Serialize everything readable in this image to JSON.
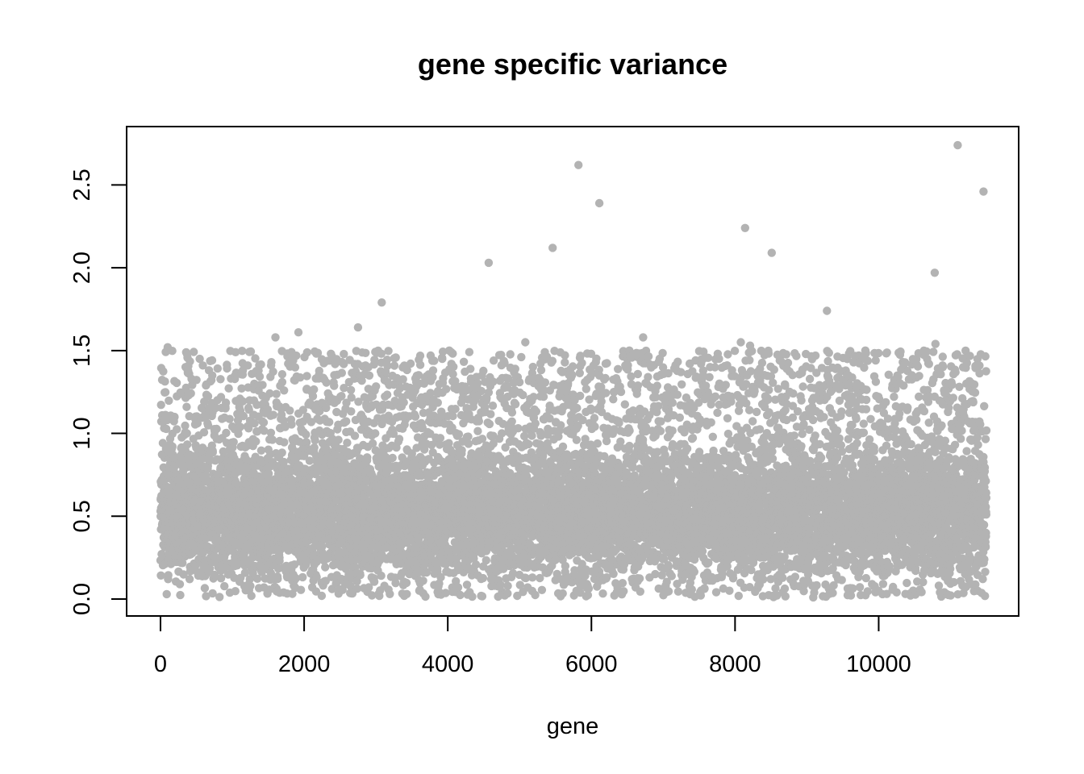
{
  "chart_data": {
    "type": "scatter",
    "title": "gene specific variance",
    "xlabel": "gene",
    "ylabel": "",
    "xlim": [
      0,
      11500
    ],
    "ylim": [
      0,
      2.75
    ],
    "x_ticks": [
      0,
      2000,
      4000,
      6000,
      8000,
      10000
    ],
    "x_tick_labels": [
      "0",
      "2000",
      "4000",
      "6000",
      "8000",
      "10000"
    ],
    "y_ticks": [
      0,
      0.5,
      1,
      1.5,
      2,
      2.5
    ],
    "y_tick_labels": [
      "0.0",
      "0.5",
      "1.0",
      "1.5",
      "2.0",
      "2.5"
    ],
    "grid": false,
    "legend": "none",
    "point_color": "#b3b3b3",
    "n_points": 11500,
    "bulk_distribution": {
      "description": "dense band of points, values roughly between 0.0 and 1.5, concentrated near 0.3-0.6",
      "min": 0.01,
      "max": 1.5
    },
    "points": [
      {
        "x": 100,
        "y": 1.52
      },
      {
        "x": 1600,
        "y": 1.58
      },
      {
        "x": 1920,
        "y": 1.61
      },
      {
        "x": 2750,
        "y": 1.64
      },
      {
        "x": 3080,
        "y": 1.79
      },
      {
        "x": 4020,
        "y": 1.5
      },
      {
        "x": 4570,
        "y": 2.03
      },
      {
        "x": 5080,
        "y": 1.55
      },
      {
        "x": 5460,
        "y": 2.12
      },
      {
        "x": 5820,
        "y": 2.62
      },
      {
        "x": 6110,
        "y": 2.39
      },
      {
        "x": 6720,
        "y": 1.58
      },
      {
        "x": 8080,
        "y": 1.55
      },
      {
        "x": 8140,
        "y": 2.24
      },
      {
        "x": 8210,
        "y": 1.53
      },
      {
        "x": 8510,
        "y": 2.09
      },
      {
        "x": 9280,
        "y": 1.74
      },
      {
        "x": 10780,
        "y": 1.97
      },
      {
        "x": 10790,
        "y": 1.54
      },
      {
        "x": 11100,
        "y": 2.74
      },
      {
        "x": 11460,
        "y": 2.46
      }
    ]
  }
}
